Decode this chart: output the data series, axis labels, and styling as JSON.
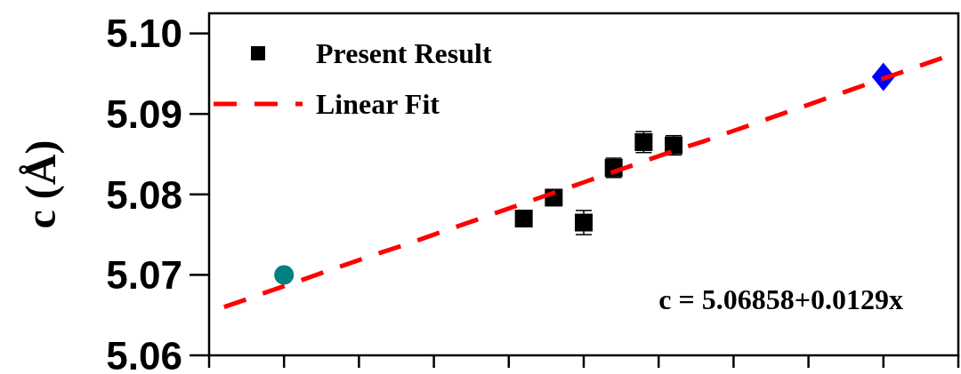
{
  "chart_data": {
    "type": "scatter",
    "ylabel": "c (Å)",
    "categories": [
      null,
      null,
      null,
      null,
      null,
      null,
      null,
      null,
      null,
      null,
      null,
      null,
      null,
      null,
      null,
      null,
      null,
      null,
      null,
      null,
      null,
      null,
      null,
      null,
      null
    ],
    "ylim": [
      5.06,
      5.1025
    ],
    "yticks": [
      5.06,
      5.07,
      5.08,
      5.09,
      {
        "value": 5.1,
        "label": "5.10"
      }
    ],
    "tick_labels": "y",
    "legend": "top left",
    "grid": false,
    "annotations": [
      "c = 5.06858+0.0129x"
    ],
    "series": [
      {
        "name": "Present Result",
        "marker": "square",
        "color": "#000000",
        "values": [
          null,
          null,
          null,
          null,
          null,
          null,
          null,
          null,
          null,
          null,
          5.077,
          5.0796,
          5.0765,
          5.0833,
          5.0865,
          5.0861,
          null,
          null,
          null,
          null,
          null,
          null,
          null,
          null,
          null
        ],
        "errors": [
          null,
          null,
          null,
          null,
          null,
          null,
          null,
          null,
          null,
          null,
          null,
          null,
          0.0015,
          0.0012,
          0.0013,
          0.0012,
          null,
          null,
          null,
          null,
          null,
          null,
          null,
          null,
          null
        ]
      },
      {
        "marker": "circle",
        "color": "#008080",
        "values": [
          null,
          null,
          5.07,
          null,
          null,
          null,
          null,
          null,
          null,
          null,
          null,
          null,
          null,
          null,
          null,
          null,
          null,
          null,
          null,
          null,
          null,
          null,
          null,
          null,
          null
        ]
      },
      {
        "marker": "diamond",
        "color": "#0000ff",
        "values": [
          null,
          null,
          null,
          null,
          null,
          null,
          null,
          null,
          null,
          null,
          null,
          null,
          null,
          null,
          null,
          null,
          null,
          null,
          null,
          null,
          null,
          null,
          5.0946,
          null,
          null
        ]
      },
      {
        "name": "Linear Fit",
        "type": "line",
        "line_style": "dashed",
        "marker": "none",
        "color": "#ff0000",
        "values": [
          5.066,
          5.0673,
          5.0686,
          5.0699,
          5.0712,
          5.0725,
          5.0737,
          5.075,
          5.0763,
          5.0776,
          5.0789,
          5.0802,
          5.0815,
          5.0828,
          5.0841,
          5.0854,
          5.0866,
          5.0879,
          5.0892,
          5.0905,
          5.0918,
          5.0931,
          5.0944,
          5.0957,
          5.097
        ]
      }
    ]
  }
}
